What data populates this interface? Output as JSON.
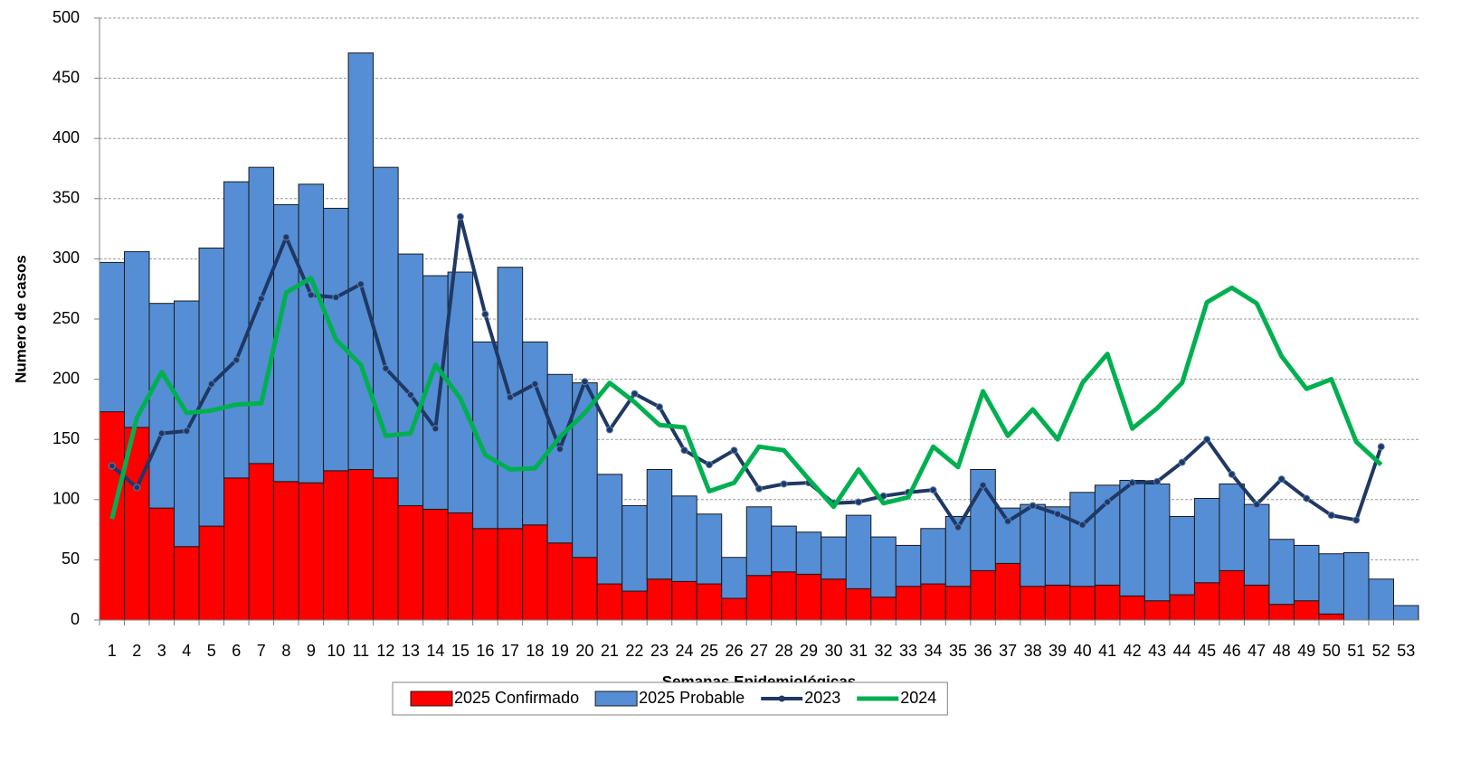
{
  "chart_data": {
    "type": "bar",
    "stacked": true,
    "x_label": "Semanas Epidemiológicas",
    "y_label": "Numero de casos",
    "categories": [
      "1",
      "2",
      "3",
      "4",
      "5",
      "6",
      "7",
      "8",
      "9",
      "10",
      "11",
      "12",
      "13",
      "14",
      "15",
      "16",
      "17",
      "18",
      "19",
      "20",
      "21",
      "22",
      "23",
      "24",
      "25",
      "26",
      "27",
      "28",
      "29",
      "30",
      "31",
      "32",
      "33",
      "34",
      "35",
      "36",
      "37",
      "38",
      "39",
      "40",
      "41",
      "42",
      "43",
      "44",
      "45",
      "46",
      "47",
      "48",
      "49",
      "50",
      "51",
      "52",
      "53"
    ],
    "ylim": [
      0,
      500
    ],
    "yticks": [
      0,
      50,
      100,
      150,
      200,
      250,
      300,
      350,
      400,
      450,
      500
    ],
    "grid": true,
    "legend": "bottom",
    "series": [
      {
        "name": "2025 Confirmado",
        "type": "bar",
        "color": "#ff0000",
        "values": [
          173,
          160,
          93,
          61,
          78,
          118,
          130,
          115,
          114,
          124,
          125,
          118,
          95,
          92,
          89,
          76,
          76,
          79,
          64,
          52,
          30,
          24,
          34,
          32,
          30,
          18,
          37,
          40,
          38,
          34,
          26,
          19,
          28,
          30,
          28,
          41,
          47,
          28,
          29,
          28,
          29,
          20,
          16,
          21,
          31,
          41,
          29,
          13,
          16,
          5,
          0,
          0,
          0
        ]
      },
      {
        "name": "2025 Probable",
        "type": "bar",
        "color": "#558ed5",
        "values": [
          124,
          146,
          170,
          204,
          231,
          246,
          246,
          230,
          248,
          218,
          346,
          258,
          209,
          194,
          200,
          155,
          217,
          152,
          140,
          145,
          91,
          71,
          91,
          71,
          58,
          34,
          57,
          38,
          35,
          35,
          61,
          50,
          34,
          46,
          58,
          84,
          46,
          68,
          65,
          78,
          83,
          96,
          97,
          65,
          70,
          72,
          67,
          54,
          46,
          50,
          56,
          34,
          12
        ]
      },
      {
        "name": "2023",
        "type": "line",
        "color": "#1f3864",
        "markers": true,
        "values": [
          128,
          110,
          155,
          157,
          196,
          216,
          267,
          318,
          270,
          268,
          279,
          209,
          187,
          159,
          335,
          254,
          185,
          196,
          142,
          198,
          158,
          188,
          177,
          141,
          129,
          141,
          109,
          113,
          114,
          97,
          98,
          103,
          106,
          108,
          77,
          112,
          82,
          95,
          88,
          79,
          98,
          114,
          115,
          131,
          150,
          121,
          96,
          117,
          101,
          87,
          83,
          144,
          null
        ]
      },
      {
        "name": "2024",
        "type": "line",
        "color": "#00b050",
        "markers": false,
        "values": [
          84,
          168,
          206,
          172,
          174,
          179,
          180,
          272,
          284,
          233,
          212,
          153,
          155,
          212,
          184,
          137,
          125,
          126,
          152,
          172,
          197,
          181,
          162,
          160,
          107,
          114,
          144,
          141,
          117,
          94,
          125,
          97,
          102,
          144,
          127,
          190,
          153,
          175,
          150,
          197,
          221,
          159,
          176,
          197,
          264,
          276,
          263,
          219,
          192,
          200,
          148,
          129,
          null
        ]
      }
    ]
  }
}
